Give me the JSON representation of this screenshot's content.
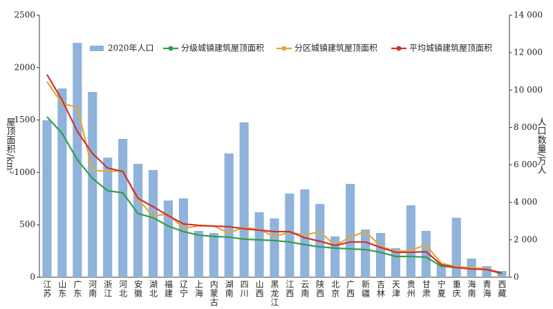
{
  "chart_data": {
    "type": "bar_line",
    "categories": [
      "江苏",
      "山东",
      "广东",
      "河南",
      "浙江",
      "河北",
      "安徽",
      "湖北",
      "福建",
      "辽宁",
      "上海",
      "内蒙古",
      "湖南",
      "四川",
      "山西",
      "黑龙江",
      "江西",
      "云南",
      "陕西",
      "北京",
      "广西",
      "新疆",
      "吉林",
      "天津",
      "贵州",
      "甘肃",
      "宁夏",
      "重庆",
      "海南",
      "青海",
      "西藏"
    ],
    "series": [
      {
        "name": "2020年人口",
        "type": "bar",
        "axis": "y2",
        "color": "#8fb3da",
        "values": [
          8386,
          10085,
          12523,
          9900,
          6391,
          7388,
          6058,
          5726,
          4100,
          4211,
          2475,
          2364,
          6612,
          8275,
          3472,
          3140,
          4470,
          4692,
          3916,
          2180,
          4987,
          2549,
          2364,
          1552,
          3842,
          2475,
          739,
          3177,
          997,
          591,
          332
        ]
      },
      {
        "name": "分级城镇建筑屋顶面积",
        "type": "line",
        "color": "#2e9e48",
        "values": [
          1530,
          1372,
          1121,
          943,
          825,
          805,
          607,
          567,
          488,
          435,
          402,
          389,
          383,
          363,
          356,
          350,
          336,
          310,
          290,
          277,
          270,
          264,
          237,
          198,
          198,
          191,
          106,
          92,
          79,
          73,
          33
        ]
      },
      {
        "name": "分区城镇建筑屋顶面积",
        "type": "line",
        "color": "#e5a836",
        "values": [
          1867,
          1656,
          1623,
          1022,
          1009,
          1016,
          739,
          587,
          600,
          468,
          488,
          488,
          422,
          475,
          455,
          389,
          429,
          402,
          435,
          303,
          383,
          435,
          297,
          244,
          257,
          310,
          132,
          99,
          92,
          79,
          40
        ]
      },
      {
        "name": "平均城镇建筑屋顶面积",
        "type": "line",
        "color": "#d2302a",
        "values": [
          1933,
          1689,
          1392,
          1181,
          1042,
          1009,
          752,
          673,
          587,
          508,
          495,
          488,
          482,
          462,
          449,
          435,
          435,
          376,
          343,
          303,
          336,
          336,
          284,
          237,
          237,
          244,
          119,
          92,
          79,
          73,
          40
        ]
      }
    ],
    "ylabel": "屋顶面积/km²",
    "y2label": "人口数量/万人",
    "ylim": [
      0,
      2500
    ],
    "yticks": [
      0,
      500,
      1000,
      1500,
      2000,
      2500
    ],
    "y2lim": [
      0,
      14000
    ],
    "y2ticks": [
      0,
      {
        "value": 2000,
        "label": "2 000"
      },
      {
        "value": 4000,
        "label": "4 000"
      },
      {
        "value": 6000,
        "label": "6 000"
      },
      {
        "value": 8000,
        "label": "8 000"
      },
      {
        "value": 10000,
        "label": "10 000"
      },
      {
        "value": 12000,
        "label": "12 000"
      },
      {
        "value": 14000,
        "label": "14 000"
      }
    ]
  }
}
